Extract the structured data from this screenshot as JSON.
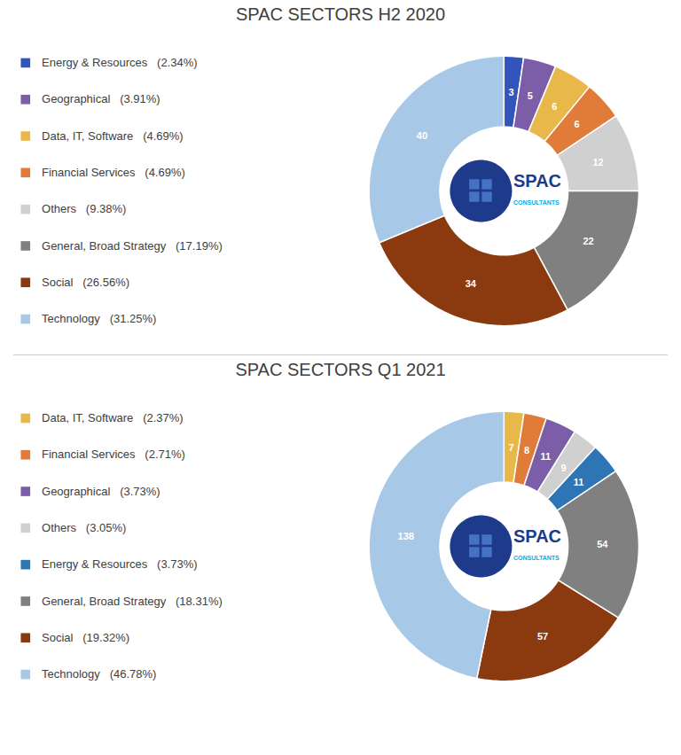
{
  "chart_data": [
    {
      "type": "pie",
      "title": "SPAC SECTORS H2 2020",
      "categories": [
        "Energy & Resources   (2.34%)",
        "Geographical   (3.91%)",
        "Data, IT, Software   (4.69%)",
        "Financial Services   (4.69%)",
        "Others   (9.38%)",
        "General, Broad Strategy   (17.19%)",
        "Social   (26.56%)",
        "Technology   (31.25%)"
      ],
      "values": [
        3,
        5,
        6,
        6,
        12,
        22,
        34,
        40
      ],
      "colors": [
        "#3355BB",
        "#7B5EA7",
        "#E8B84B",
        "#E07B39",
        "#D0D0D0",
        "#808080",
        "#8B3A10",
        "#A8C8E8"
      ],
      "data_labels": true,
      "legend": "left",
      "annotations": [
        "SPAC",
        "CONSULTANTS"
      ]
    },
    {
      "type": "pie",
      "title": "SPAC SECTORS Q1 2021",
      "categories": [
        "Data, IT, Software   (2.37%)",
        "Financial Services   (2.71%)",
        "Geographical   (3.73%)",
        "Others   (3.05%)",
        "Energy & Resources   (3.73%)",
        "General, Broad Strategy   (18.31%)",
        "Social   (19.32%)",
        "Technology   (46.78%)"
      ],
      "values": [
        7,
        8,
        11,
        9,
        11,
        54,
        57,
        138
      ],
      "colors": [
        "#E8B84B",
        "#E07B39",
        "#7B5EA7",
        "#D0D0D0",
        "#2E75B6",
        "#808080",
        "#8B3A10",
        "#A8C8E8"
      ],
      "data_labels": true,
      "legend": "left",
      "annotations": [
        "SPAC",
        "CONSULTANTS"
      ]
    }
  ]
}
